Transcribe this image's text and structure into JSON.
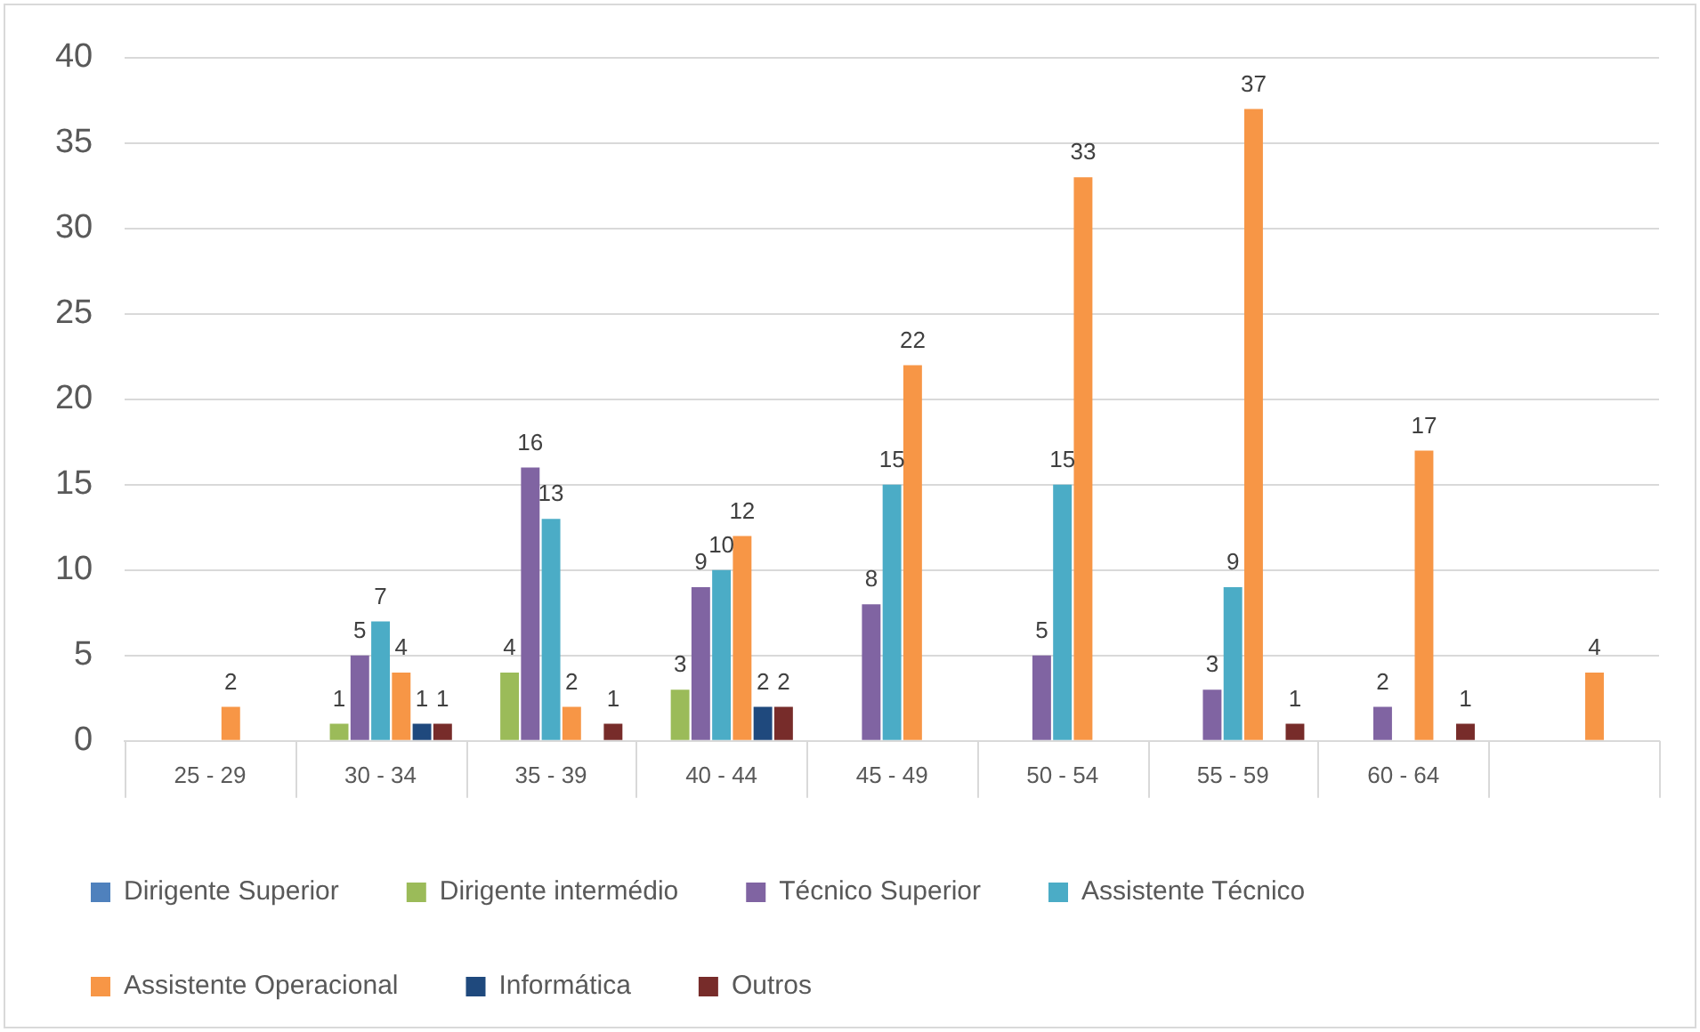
{
  "chart_data": {
    "type": "bar",
    "categories": [
      "25 - 29",
      "30 - 34",
      "35 - 39",
      "40 - 44",
      "45 - 49",
      "50 - 54",
      "55 - 59",
      "60 - 64",
      null
    ],
    "series": [
      {
        "name": "Dirigente Superior",
        "color": "#4f81bd",
        "values": [
          null,
          null,
          null,
          null,
          null,
          null,
          null,
          null,
          null
        ]
      },
      {
        "name": "Dirigente intermédio",
        "color": "#9bbb59",
        "values": [
          null,
          1,
          4,
          3,
          null,
          null,
          null,
          null,
          null
        ]
      },
      {
        "name": "Técnico Superior",
        "color": "#8064a2",
        "values": [
          null,
          5,
          16,
          9,
          8,
          5,
          3,
          2,
          null
        ]
      },
      {
        "name": "Assistente Técnico",
        "color": "#4bacc6",
        "values": [
          null,
          7,
          13,
          10,
          15,
          15,
          9,
          null,
          null
        ]
      },
      {
        "name": "Assistente Operacional",
        "color": "#f79646",
        "values": [
          2,
          4,
          2,
          12,
          22,
          33,
          37,
          17,
          4
        ]
      },
      {
        "name": "Informática",
        "color": "#1f497d",
        "values": [
          null,
          1,
          null,
          2,
          null,
          null,
          null,
          null,
          null
        ]
      },
      {
        "name": "Outros",
        "color": "#772c2a",
        "values": [
          null,
          1,
          1,
          2,
          null,
          null,
          1,
          1,
          null
        ]
      }
    ],
    "ylim": [
      0,
      40
    ],
    "yticks": [
      0,
      5,
      10,
      15,
      20,
      25,
      30,
      35,
      40
    ],
    "grid": "y",
    "legend": "bottom",
    "data_labels": true
  }
}
